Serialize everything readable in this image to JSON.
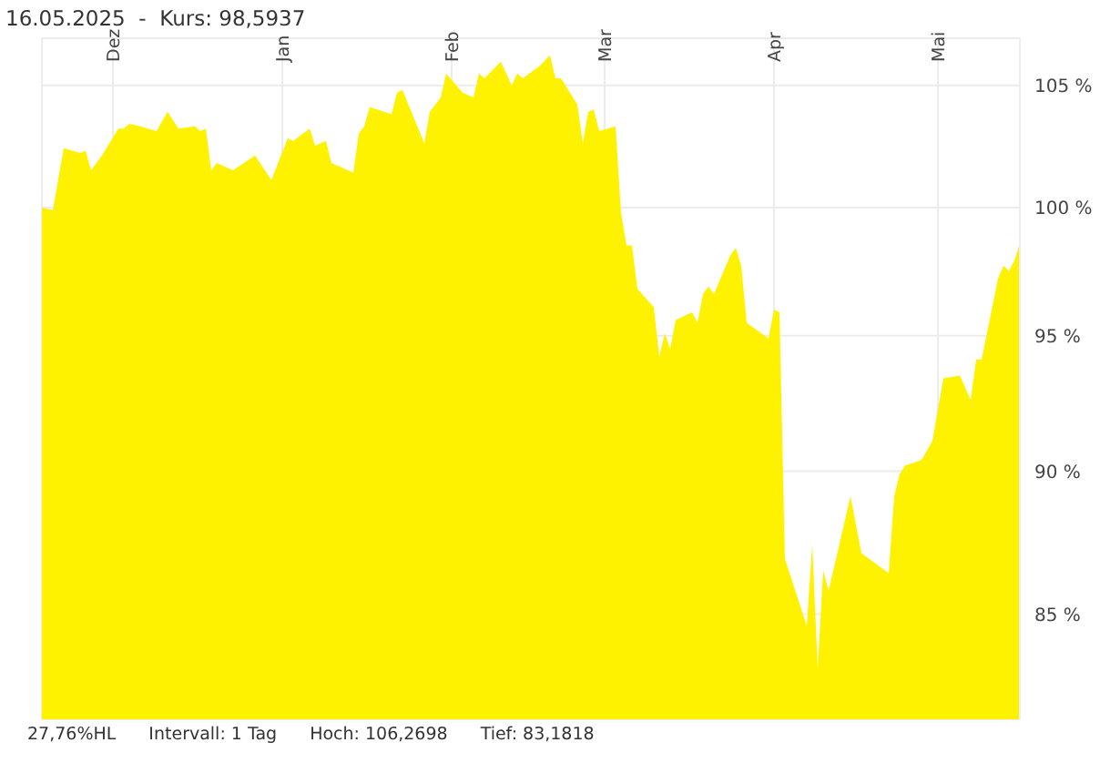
{
  "chart_data": {
    "type": "area",
    "title": "16.05.2025  -  Kurs: 98,5937",
    "x": [
      "2024-11-18",
      "2024-11-20",
      "2024-11-22",
      "2024-11-25",
      "2024-11-26",
      "2024-11-27",
      "2024-11-29",
      "2024-12-02",
      "2024-12-03",
      "2024-12-04",
      "2024-12-06",
      "2024-12-09",
      "2024-12-11",
      "2024-12-13",
      "2024-12-16",
      "2024-12-17",
      "2024-12-18",
      "2024-12-19",
      "2024-12-20",
      "2024-12-23",
      "2024-12-27",
      "2024-12-30",
      "2025-01-02",
      "2025-01-03",
      "2025-01-06",
      "2025-01-07",
      "2025-01-09",
      "2025-01-10",
      "2025-01-13",
      "2025-01-14",
      "2025-01-15",
      "2025-01-16",
      "2025-01-17",
      "2025-01-21",
      "2025-01-22",
      "2025-01-23",
      "2025-01-27",
      "2025-01-28",
      "2025-01-30",
      "2025-01-31",
      "2025-02-03",
      "2025-02-05",
      "2025-02-06",
      "2025-02-07",
      "2025-02-10",
      "2025-02-12",
      "2025-02-13",
      "2025-02-14",
      "2025-02-17",
      "2025-02-19",
      "2025-02-20",
      "2025-02-21",
      "2025-02-24",
      "2025-02-25",
      "2025-02-26",
      "2025-02-27",
      "2025-02-28",
      "2025-03-03",
      "2025-03-04",
      "2025-03-05",
      "2025-03-06",
      "2025-03-07",
      "2025-03-10",
      "2025-03-11",
      "2025-03-12",
      "2025-03-13",
      "2025-03-14",
      "2025-03-17",
      "2025-03-18",
      "2025-03-19",
      "2025-03-20",
      "2025-03-21",
      "2025-03-24",
      "2025-03-25",
      "2025-03-26",
      "2025-03-27",
      "2025-03-31",
      "2025-04-01",
      "2025-04-02",
      "2025-04-03",
      "2025-04-07",
      "2025-04-08",
      "2025-04-09",
      "2025-04-10",
      "2025-04-11",
      "2025-04-15",
      "2025-04-17",
      "2025-04-22",
      "2025-04-23",
      "2025-04-24",
      "2025-04-25",
      "2025-04-28",
      "2025-04-30",
      "2025-05-02",
      "2025-05-05",
      "2025-05-07",
      "2025-05-08",
      "2025-05-09",
      "2025-05-12",
      "2025-05-13",
      "2025-05-14",
      "2025-05-15",
      "2025-05-16"
    ],
    "series": [
      {
        "color": "#fff200",
        "values": [
          100.0,
          99.9,
          102.4,
          102.2,
          102.3,
          101.5,
          102.1,
          103.2,
          103.2,
          103.4,
          103.3,
          103.1,
          103.9,
          103.2,
          103.3,
          103.1,
          103.2,
          101.5,
          101.8,
          101.5,
          102.1,
          101.1,
          102.8,
          102.7,
          103.2,
          102.5,
          102.7,
          101.8,
          101.5,
          101.4,
          103.0,
          103.3,
          104.1,
          103.8,
          104.7,
          104.8,
          102.6,
          103.9,
          104.5,
          105.5,
          104.7,
          104.5,
          105.5,
          105.3,
          106.0,
          105.0,
          105.5,
          105.3,
          105.8,
          106.2698,
          105.3,
          105.3,
          104.2,
          102.6,
          103.9,
          104.0,
          103.1,
          103.3,
          99.8,
          98.5,
          98.5,
          96.8,
          96.1,
          94.2,
          95.1,
          94.5,
          95.6,
          95.9,
          95.5,
          96.6,
          96.9,
          96.6,
          98.1,
          98.4,
          97.7,
          95.5,
          94.9,
          96.0,
          95.9,
          86.9,
          84.6,
          87.4,
          83.1818,
          86.5,
          85.8,
          89.1,
          87.1,
          86.4,
          89.1,
          89.9,
          90.2,
          90.4,
          91.1,
          93.4,
          93.5,
          92.6,
          94.1,
          94.1,
          97.2,
          97.7,
          97.5,
          97.9,
          98.5937
        ]
      }
    ],
    "xlim": [
      "2024-11-18",
      "2025-05-16"
    ],
    "xticks": [
      {
        "value": "2024-12-01",
        "label": "Dez"
      },
      {
        "value": "2025-01-01",
        "label": "Jan"
      },
      {
        "value": "2025-02-01",
        "label": "Feb"
      },
      {
        "value": "2025-03-01",
        "label": "Mar"
      },
      {
        "value": "2025-04-01",
        "label": "Apr"
      },
      {
        "value": "2025-05-01",
        "label": "Mai"
      }
    ],
    "ylim": [
      81.5,
      107
    ],
    "yticks": [
      {
        "value": 85,
        "label": "85 %"
      },
      {
        "value": 90,
        "label": "90 %"
      },
      {
        "value": 95,
        "label": "95 %"
      },
      {
        "value": 100,
        "label": "100 %"
      },
      {
        "value": 105,
        "label": "105 %"
      }
    ],
    "log": "y",
    "grid": true,
    "annotations": [
      "27,76%HL",
      "Intervall: 1 Tag",
      "Hoch: 106,2698",
      "Tief: 83,1818"
    ]
  }
}
